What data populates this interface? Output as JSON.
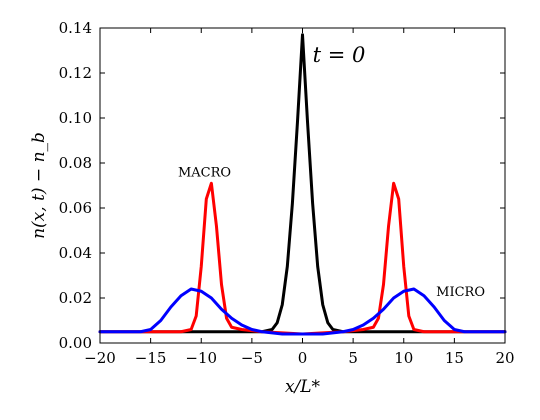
{
  "chart_data": {
    "type": "line",
    "xlabel": "x/L*",
    "ylabel": "n(x, t) − n_b",
    "xlim": [
      -20,
      20
    ],
    "ylim": [
      0,
      0.14
    ],
    "xticks": [
      -20,
      -15,
      -10,
      -5,
      0,
      5,
      10,
      15,
      20
    ],
    "xtick_labels": [
      "−20",
      "−15",
      "−10",
      "−5",
      "0",
      "5",
      "10",
      "15",
      "20"
    ],
    "yticks": [
      0.0,
      0.02,
      0.04,
      0.06,
      0.08,
      0.1,
      0.12,
      0.14
    ],
    "ytick_labels": [
      "0.00",
      "0.02",
      "0.04",
      "0.06",
      "0.08",
      "0.10",
      "0.12",
      "0.14"
    ],
    "grid": false,
    "annotations": [
      {
        "text": "t = 0",
        "x": 1.0,
        "y": 0.125
      },
      {
        "text": "MACRO",
        "x": -12.3,
        "y": 0.074
      },
      {
        "text": "MICRO",
        "x": 13.2,
        "y": 0.021
      }
    ],
    "series": [
      {
        "color": "#000000",
        "x": [
          -20,
          -4,
          -3,
          -2.5,
          -2,
          -1.5,
          -1,
          -0.5,
          0,
          0.5,
          1,
          1.5,
          2,
          2.5,
          3,
          4,
          20
        ],
        "y": [
          0.005,
          0.005,
          0.006,
          0.009,
          0.017,
          0.034,
          0.062,
          0.098,
          0.137,
          0.098,
          0.062,
          0.034,
          0.017,
          0.009,
          0.006,
          0.005,
          0.005
        ]
      },
      {
        "color": "#ff0000",
        "x": [
          -20,
          -16,
          -14,
          -13,
          -12,
          -11,
          -10.5,
          -10,
          -9.5,
          -9,
          -8.5,
          -8,
          -7.5,
          -7,
          -6,
          -4,
          0,
          4,
          6,
          7,
          7.5,
          8,
          8.5,
          9,
          9.5,
          10,
          10.5,
          11,
          12,
          13,
          14,
          16,
          20
        ],
        "y": [
          0.005,
          0.005,
          0.005,
          0.005,
          0.005,
          0.006,
          0.012,
          0.034,
          0.064,
          0.071,
          0.052,
          0.026,
          0.011,
          0.007,
          0.006,
          0.005,
          0.004,
          0.005,
          0.006,
          0.007,
          0.011,
          0.026,
          0.052,
          0.071,
          0.064,
          0.034,
          0.012,
          0.006,
          0.005,
          0.005,
          0.005,
          0.005,
          0.005
        ]
      },
      {
        "color": "#0000ff",
        "x": [
          -20,
          -17,
          -16,
          -15,
          -14,
          -13,
          -12,
          -11,
          -10,
          -9,
          -8,
          -7,
          -6,
          -5,
          -4,
          -2,
          0,
          2,
          4,
          5,
          6,
          7,
          8,
          9,
          10,
          11,
          12,
          13,
          14,
          15,
          16,
          17,
          20
        ],
        "y": [
          0.005,
          0.005,
          0.005,
          0.006,
          0.01,
          0.016,
          0.021,
          0.024,
          0.023,
          0.02,
          0.015,
          0.011,
          0.008,
          0.006,
          0.005,
          0.004,
          0.004,
          0.004,
          0.005,
          0.006,
          0.008,
          0.011,
          0.015,
          0.02,
          0.023,
          0.024,
          0.021,
          0.016,
          0.01,
          0.006,
          0.005,
          0.005,
          0.005
        ]
      }
    ]
  }
}
